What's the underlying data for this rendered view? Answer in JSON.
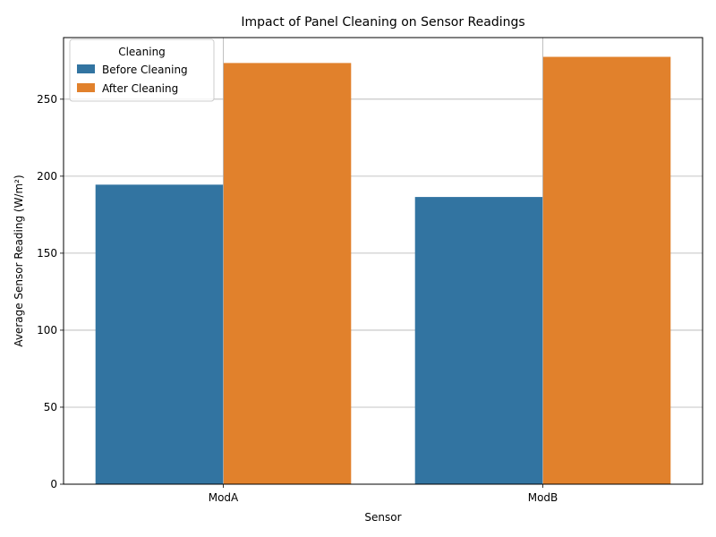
{
  "chart_data": {
    "type": "bar",
    "title": "Impact of Panel Cleaning on Sensor Readings",
    "xlabel": "Sensor",
    "ylabel": "Average Sensor Reading (W/m²)",
    "categories": [
      "ModA",
      "ModB"
    ],
    "series": [
      {
        "name": "Before Cleaning",
        "values": [
          194.5,
          186.5
        ],
        "color": "#3274a1"
      },
      {
        "name": "After Cleaning",
        "values": [
          273.5,
          277.5
        ],
        "color": "#e1812c"
      }
    ],
    "ylim": [
      0,
      290
    ],
    "yticks": [
      0,
      50,
      100,
      150,
      200,
      250
    ],
    "grid": true,
    "legend": {
      "title": "Cleaning",
      "placement": "top-left"
    }
  }
}
